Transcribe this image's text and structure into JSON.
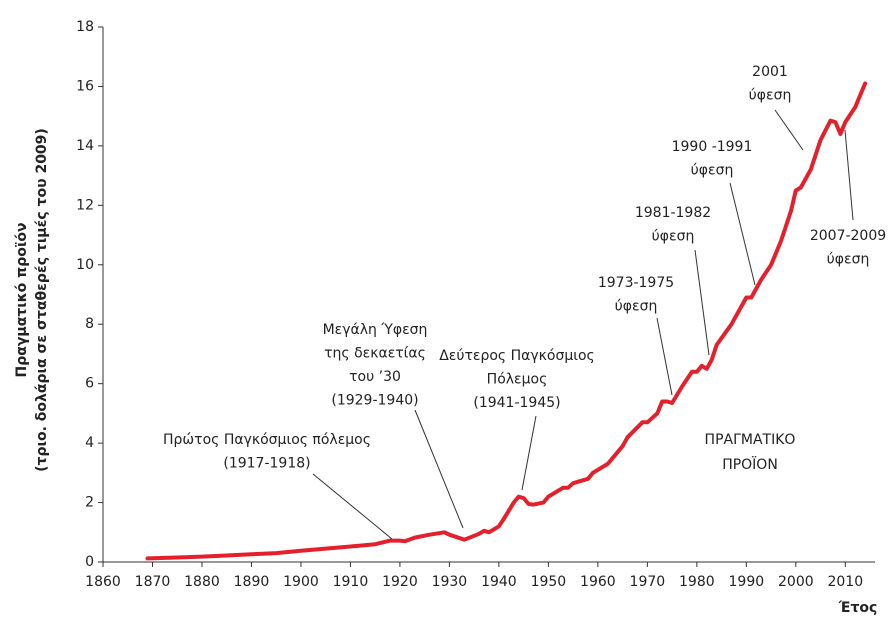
{
  "chart_data": {
    "type": "line",
    "y_label_lines": [
      "Πραγματικό προϊόν",
      "(τριο. δολάρια σε σταθερές τιμές του 2009)"
    ],
    "x_label": "Έτος",
    "series_label_lines": [
      "ΠΡΑΓΜΑΤΙΚΟ",
      "ΠΡΟΪΟΝ"
    ],
    "annotations": [
      {
        "lines": [
          "Πρώτος Παγκόσμιος πόλεμος",
          "(1917-1918)"
        ]
      },
      {
        "lines": [
          "Μεγάλη Ύφεση",
          "της δεκαετίας",
          "του ’30",
          "(1929-1940)"
        ]
      },
      {
        "lines": [
          "Δεύτερος Παγκόσμιος",
          "Πόλεμος",
          "(1941-1945)"
        ]
      },
      {
        "lines": [
          "1973-1975",
          "ύφεση"
        ]
      },
      {
        "lines": [
          "1981-1982",
          "ύφεση"
        ]
      },
      {
        "lines": [
          "1990 -1991",
          "ύφεση"
        ]
      },
      {
        "lines": [
          "2001",
          "ύφεση"
        ]
      },
      {
        "lines": [
          "2007-2009",
          "ύφεση"
        ]
      }
    ],
    "color": "#e3202b",
    "x": [
      1869,
      1875,
      1880,
      1885,
      1890,
      1895,
      1900,
      1905,
      1910,
      1915,
      1918,
      1920,
      1921,
      1923,
      1926,
      1929,
      1930,
      1933,
      1936,
      1937,
      1938,
      1940,
      1941,
      1943,
      1944,
      1945,
      1946,
      1947,
      1949,
      1950,
      1953,
      1954,
      1955,
      1958,
      1959,
      1962,
      1965,
      1966,
      1969,
      1970,
      1972,
      1973,
      1974,
      1975,
      1977,
      1979,
      1980,
      1981,
      1982,
      1983,
      1984,
      1987,
      1989,
      1990,
      1991,
      1993,
      1995,
      1997,
      1999,
      2000,
      2001,
      2003,
      2005,
      2007,
      2008,
      2009,
      2010,
      2012,
      2014
    ],
    "values": [
      0.12,
      0.15,
      0.18,
      0.22,
      0.26,
      0.3,
      0.38,
      0.45,
      0.52,
      0.6,
      0.72,
      0.72,
      0.7,
      0.82,
      0.92,
      1.0,
      0.92,
      0.75,
      0.95,
      1.05,
      1.0,
      1.2,
      1.45,
      2.0,
      2.2,
      2.15,
      1.95,
      1.93,
      2.0,
      2.2,
      2.5,
      2.5,
      2.65,
      2.8,
      3.0,
      3.3,
      3.9,
      4.2,
      4.7,
      4.7,
      5.0,
      5.4,
      5.4,
      5.35,
      5.9,
      6.4,
      6.4,
      6.6,
      6.5,
      6.8,
      7.3,
      8.0,
      8.6,
      8.9,
      8.9,
      9.5,
      10.0,
      10.8,
      11.8,
      12.5,
      12.6,
      13.2,
      14.2,
      14.85,
      14.8,
      14.4,
      14.8,
      15.3,
      16.1
    ],
    "xlim": [
      1860,
      2016
    ],
    "ylim": [
      0,
      18
    ],
    "xticks": [
      1860,
      1870,
      1880,
      1890,
      1900,
      1910,
      1920,
      1930,
      1940,
      1950,
      1960,
      1970,
      1980,
      1990,
      2000,
      2010
    ],
    "yticks": [
      0,
      2,
      4,
      6,
      8,
      10,
      12,
      14,
      16,
      18
    ]
  }
}
